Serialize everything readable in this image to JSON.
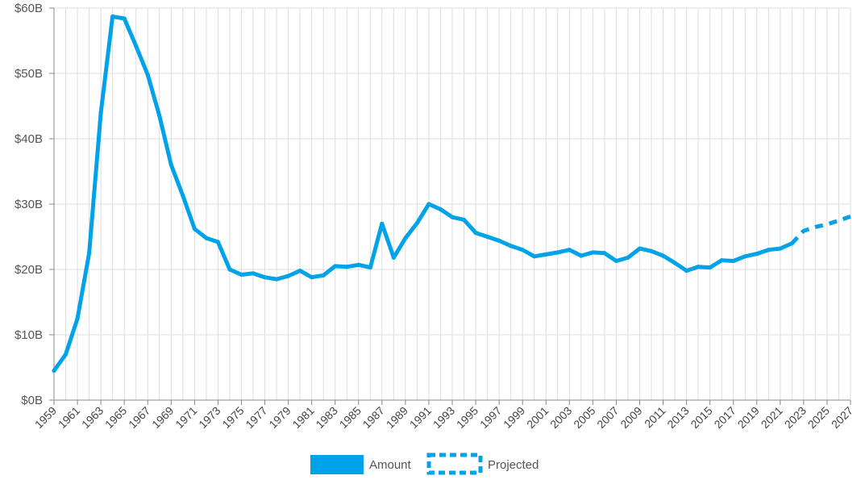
{
  "chart_data": {
    "type": "line",
    "title": "",
    "xlabel": "",
    "ylabel": "",
    "ylim": [
      0,
      60
    ],
    "y_ticks": [
      "$0B",
      "$10B",
      "$20B",
      "$30B",
      "$40B",
      "$50B",
      "$60B"
    ],
    "x_ticks": [
      "1959",
      "1961",
      "1963",
      "1965",
      "1967",
      "1969",
      "1971",
      "1973",
      "1975",
      "1977",
      "1979",
      "1981",
      "1983",
      "1985",
      "1987",
      "1989",
      "1991",
      "1993",
      "1995",
      "1997",
      "1999",
      "2001",
      "2003",
      "2005",
      "2007",
      "2009",
      "2011",
      "2013",
      "2015",
      "2017",
      "2019",
      "2021",
      "2023",
      "2025",
      "2027"
    ],
    "grid": true,
    "legend_position": "bottom",
    "colors": {
      "line": "#00a2e8",
      "grid": "#dddddd",
      "axis": "#888888"
    },
    "series": [
      {
        "name": "Amount",
        "style": "solid",
        "x": [
          1959,
          1960,
          1961,
          1962,
          1963,
          1964,
          1965,
          1966,
          1967,
          1968,
          1969,
          1970,
          1971,
          1972,
          1973,
          1974,
          1975,
          1976,
          1977,
          1978,
          1979,
          1980,
          1981,
          1982,
          1983,
          1984,
          1985,
          1986,
          1987,
          1988,
          1989,
          1990,
          1991,
          1992,
          1993,
          1994,
          1995,
          1996,
          1997,
          1998,
          1999,
          2000,
          2001,
          2002,
          2003,
          2004,
          2005,
          2006,
          2007,
          2008,
          2009,
          2010,
          2011,
          2012,
          2013,
          2014,
          2015,
          2016,
          2017,
          2018,
          2019,
          2020,
          2021,
          2022
        ],
        "values": [
          4.5,
          7.0,
          12.5,
          22.5,
          44.0,
          58.7,
          58.4,
          54.2,
          49.8,
          43.5,
          36.0,
          31.3,
          26.2,
          24.8,
          24.2,
          20.0,
          19.2,
          19.4,
          18.8,
          18.5,
          19.0,
          19.8,
          18.8,
          19.1,
          20.5,
          20.4,
          20.7,
          20.3,
          27.0,
          21.8,
          24.8,
          27.1,
          30.0,
          29.2,
          28.0,
          27.6,
          25.6,
          25.0,
          24.4,
          23.6,
          23.0,
          22.0,
          22.3,
          22.6,
          23.0,
          22.1,
          22.6,
          22.5,
          21.3,
          21.8,
          23.2,
          22.8,
          22.1,
          21.0,
          19.8,
          20.4,
          20.3,
          21.4,
          21.3,
          22.0,
          22.4,
          23.0,
          23.2,
          24.0
        ]
      },
      {
        "name": "Projected",
        "style": "dashed",
        "x": [
          2022,
          2023,
          2024,
          2025,
          2026,
          2027
        ],
        "values": [
          24.0,
          25.9,
          26.5,
          26.9,
          27.5,
          28.1
        ]
      }
    ]
  }
}
